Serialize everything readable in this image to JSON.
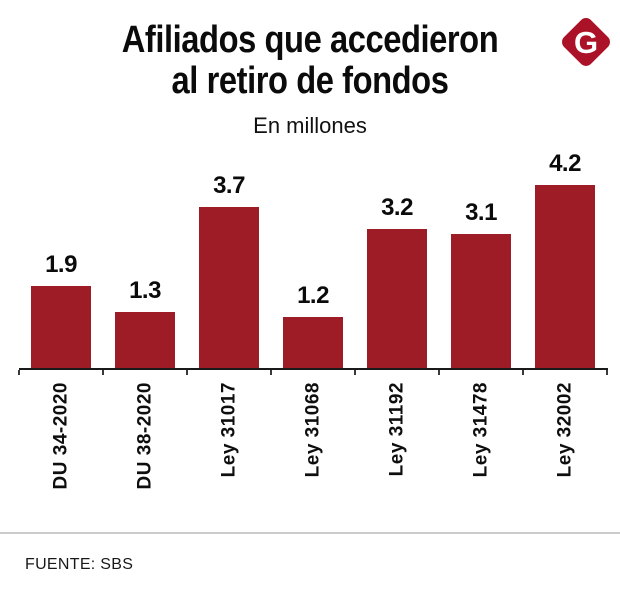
{
  "header": {
    "title_line1": "Afiliados que accedieron",
    "title_line2": "al retiro de fondos",
    "subtitle": "En millones"
  },
  "logo": {
    "letter": "G",
    "color": "#AC1227"
  },
  "chart_data": {
    "type": "bar",
    "title": "Afiliados que accedieron al retiro de fondos",
    "subtitle": "En millones",
    "categories": [
      "DU 34-2020",
      "DU 38-2020",
      "Ley 31017",
      "Ley 31068",
      "Ley 31192",
      "Ley 31478",
      "Ley 32002"
    ],
    "values": [
      1.9,
      1.3,
      3.7,
      1.2,
      3.2,
      3.1,
      4.2
    ],
    "value_labels": [
      "1.9",
      "1.3",
      "3.7",
      "1.2",
      "3.2",
      "3.1",
      "4.2"
    ],
    "unit": "millones",
    "bar_color": "#9E1C26",
    "ylim": [
      0,
      4.6
    ],
    "grid": false,
    "legend": "none",
    "x_tick_rotation": -90
  },
  "footer": {
    "source": "FUENTE: SBS"
  }
}
